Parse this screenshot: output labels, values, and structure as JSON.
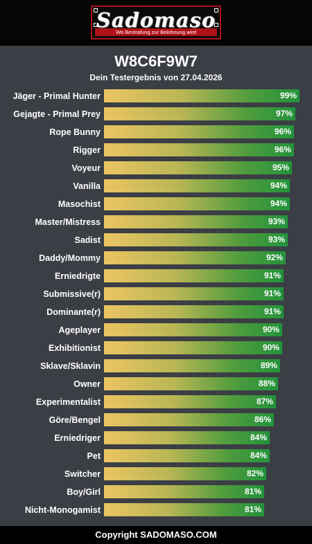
{
  "header": {
    "logo_text": "Sadomaso",
    "logo_tagline": "Wo Bestrafung zur Belohnung wird"
  },
  "result": {
    "code": "W8C6F9W7",
    "subtitle": "Dein Testergebnis von 27.04.2026"
  },
  "chart_data": {
    "type": "bar",
    "orientation": "horizontal",
    "categories": [
      "Jäger - Primal Hunter",
      "Gejagte - Primal Prey",
      "Rope Bunny",
      "Rigger",
      "Voyeur",
      "Vanilla",
      "Masochist",
      "Master/Mistress",
      "Sadist",
      "Daddy/Mommy",
      "Erniedrigte",
      "Submissive(r)",
      "Dominante(r)",
      "Ageplayer",
      "Exhibitionist",
      "Sklave/Sklavin",
      "Owner",
      "Experimentalist",
      "Göre/Bengel",
      "Erniedriger",
      "Pet",
      "Switcher",
      "Boy/Girl",
      "Nicht-Monogamist"
    ],
    "values": [
      99,
      97,
      96,
      96,
      95,
      94,
      94,
      93,
      93,
      92,
      91,
      91,
      91,
      90,
      90,
      89,
      88,
      87,
      86,
      84,
      84,
      82,
      81,
      81
    ],
    "value_labels": [
      "99%",
      "97%",
      "96%",
      "96%",
      "95%",
      "94%",
      "94%",
      "93%",
      "93%",
      "92%",
      "91%",
      "91%",
      "91%",
      "90%",
      "90%",
      "89%",
      "88%",
      "87%",
      "86%",
      "84%",
      "84%",
      "82%",
      "81%",
      "81%"
    ],
    "xlim": [
      0,
      100
    ],
    "bar_gradient": [
      "#ecc562",
      "#23923c"
    ]
  },
  "footer": {
    "copyright": "Copyright SADOMASO.COM"
  }
}
